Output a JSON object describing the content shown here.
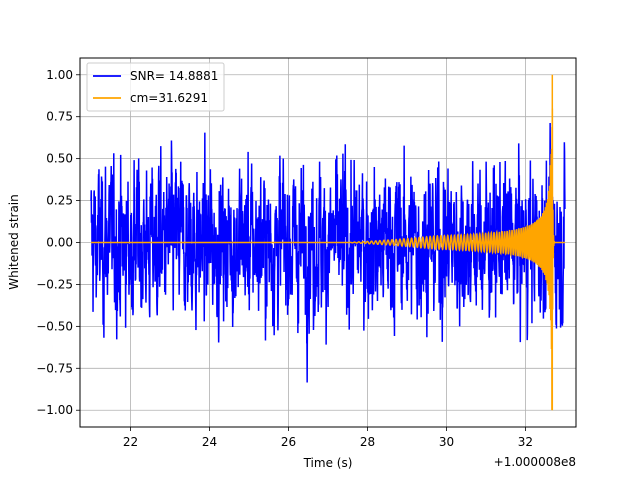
{
  "chart_data": {
    "type": "line",
    "xlabel": "Time (s)",
    "ylabel": "Whitened strain",
    "x_offset_label": "+1.000008e8",
    "xlim": [
      20.72,
      33.28
    ],
    "ylim": [
      -1.1,
      1.1
    ],
    "x_ticks": [
      22,
      24,
      26,
      28,
      30,
      32
    ],
    "x_tick_labels": [
      "22",
      "24",
      "26",
      "28",
      "30",
      "32"
    ],
    "y_ticks": [
      -1.0,
      -0.75,
      -0.5,
      -0.25,
      0.0,
      0.25,
      0.5,
      0.75,
      1.0
    ],
    "y_tick_labels": [
      "−1.00",
      "−0.75",
      "−0.50",
      "−0.25",
      "0.00",
      "0.25",
      "0.50",
      "0.75",
      "1.00"
    ],
    "grid": true,
    "legend_position": "top-left",
    "series": [
      {
        "name": "SNR= 14.8881",
        "color": "#0000ff",
        "kind": "noise",
        "x_range": [
          21.0,
          33.0
        ],
        "amplitude_typical": 0.42,
        "amplitude_max": 0.9
      },
      {
        "name": "cm=31.6291",
        "color": "#ffa500",
        "kind": "chirp",
        "x_range": [
          21.0,
          33.0
        ],
        "onset": 27.5,
        "peak_time": 32.68,
        "peak_amplitude": 1.0
      }
    ]
  }
}
